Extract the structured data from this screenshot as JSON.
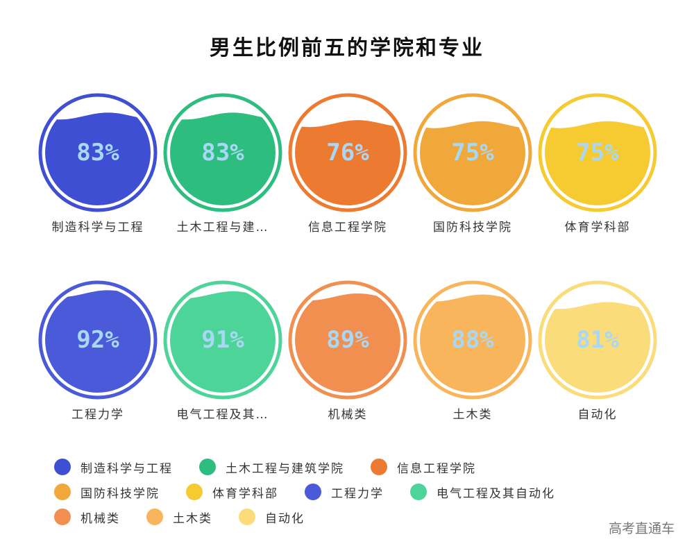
{
  "chart_data": {
    "type": "liquid-fill",
    "title": "男生比例前五的学院和专业",
    "items": [
      {
        "label": "制造科学与工程",
        "full_name": "制造科学与工程",
        "value": 83,
        "display": "83%",
        "color": "#3f4fd4"
      },
      {
        "label": "土木工程与建…",
        "full_name": "土木工程与建筑学院",
        "value": 83,
        "display": "83%",
        "color": "#2dbd7e"
      },
      {
        "label": "信息工程学院",
        "full_name": "信息工程学院",
        "value": 76,
        "display": "76%",
        "color": "#ec7a30"
      },
      {
        "label": "国防科技学院",
        "full_name": "国防科技学院",
        "value": 75,
        "display": "75%",
        "color": "#f0a83a"
      },
      {
        "label": "体育学科部",
        "full_name": "体育学科部",
        "value": 75,
        "display": "75%",
        "color": "#f6cb32"
      },
      {
        "label": "工程力学",
        "full_name": "工程力学",
        "value": 92,
        "display": "92%",
        "color": "#4a5ad8"
      },
      {
        "label": "电气工程及其…",
        "full_name": "电气工程及其自动化",
        "value": 91,
        "display": "91%",
        "color": "#4dd498"
      },
      {
        "label": "机械类",
        "full_name": "机械类",
        "value": 89,
        "display": "89%",
        "color": "#f08f50"
      },
      {
        "label": "土木类",
        "full_name": "土木类",
        "value": 88,
        "display": "88%",
        "color": "#f8b55c"
      },
      {
        "label": "自动化",
        "full_name": "自动化",
        "value": 81,
        "display": "81%",
        "color": "#fbdc7a"
      }
    ],
    "value_text_color": "#a9d8f5",
    "legend_rows": [
      [
        0,
        1,
        2
      ],
      [
        3,
        4,
        5,
        6
      ],
      [
        7,
        8,
        9
      ]
    ]
  },
  "watermark": "高考直通车"
}
